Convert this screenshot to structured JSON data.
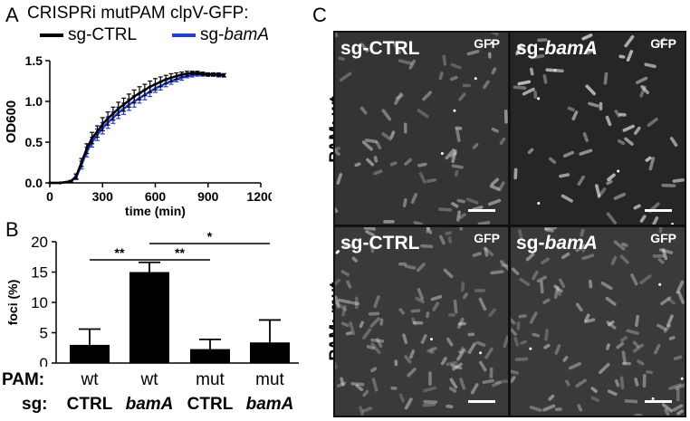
{
  "panels": {
    "a": "A",
    "b": "B",
    "c": "C"
  },
  "panel_a": {
    "title": "CRISPRi mutPAM clpV-GFP:",
    "legend": [
      {
        "label": "sg-CTRL",
        "color": "#000000"
      },
      {
        "label": "sg-",
        "label_italic": "bamA",
        "color": "#1f3fd8"
      }
    ]
  },
  "panel_b": {
    "significance": [
      "**",
      "**",
      "*"
    ],
    "conditions": {
      "pam_label": "PAM:",
      "sg_label": "sg:",
      "pam": [
        "wt",
        "wt",
        "mut",
        "mut"
      ],
      "sg": [
        "CTRL",
        "bamA",
        "CTRL",
        "bamA"
      ]
    }
  },
  "panel_c": {
    "row_labels": [
      "PAM: wt",
      "PAM: mut"
    ],
    "channel": "GFP",
    "tiles": [
      {
        "prefix": "sg-",
        "name": "CTRL"
      },
      {
        "prefix": "sg-",
        "name": "bamA"
      },
      {
        "prefix": "sg-",
        "name": "CTRL"
      },
      {
        "prefix": "sg-",
        "name": "bamA"
      }
    ]
  },
  "chart_data": [
    {
      "type": "line",
      "xlabel": "time (min)",
      "ylabel": "OD600",
      "xlim": [
        0,
        1200
      ],
      "ylim": [
        0,
        1.5
      ],
      "xticks": [
        0,
        300,
        600,
        900,
        1200
      ],
      "yticks": [
        0.0,
        0.5,
        1.0,
        1.5
      ],
      "ytick_labels": [
        "0.0",
        "0.5",
        "1.0",
        "1.5"
      ],
      "grid": false,
      "series": [
        {
          "name": "sg-CTRL",
          "color": "#000000",
          "x": [
            0,
            60,
            120,
            150,
            180,
            210,
            240,
            270,
            300,
            330,
            360,
            390,
            420,
            450,
            480,
            510,
            540,
            570,
            600,
            630,
            660,
            690,
            720,
            750,
            780,
            810,
            840,
            870,
            900,
            930,
            960,
            990
          ],
          "y": [
            0.0,
            0.0,
            0.02,
            0.08,
            0.25,
            0.42,
            0.55,
            0.63,
            0.72,
            0.79,
            0.85,
            0.91,
            0.96,
            1.01,
            1.06,
            1.1,
            1.14,
            1.18,
            1.21,
            1.24,
            1.27,
            1.29,
            1.31,
            1.33,
            1.34,
            1.35,
            1.35,
            1.34,
            1.33,
            1.33,
            1.33,
            1.32
          ],
          "err": [
            0.0,
            0.0,
            0.01,
            0.03,
            0.05,
            0.06,
            0.07,
            0.07,
            0.08,
            0.08,
            0.08,
            0.08,
            0.08,
            0.08,
            0.08,
            0.08,
            0.07,
            0.07,
            0.07,
            0.06,
            0.05,
            0.05,
            0.04,
            0.03,
            0.03,
            0.02,
            0.02,
            0.02,
            0.02,
            0.02,
            0.02,
            0.02
          ]
        },
        {
          "name": "sg-bamA",
          "color": "#1f3fd8",
          "x": [
            0,
            60,
            120,
            150,
            180,
            210,
            240,
            270,
            300,
            330,
            360,
            390,
            420,
            450,
            480,
            510,
            540,
            570,
            600,
            630,
            660,
            690,
            720,
            750,
            780,
            810,
            840,
            870,
            900,
            930,
            960,
            990
          ],
          "y": [
            0.0,
            0.0,
            0.02,
            0.07,
            0.22,
            0.38,
            0.5,
            0.59,
            0.67,
            0.74,
            0.8,
            0.86,
            0.91,
            0.96,
            1.0,
            1.04,
            1.08,
            1.12,
            1.16,
            1.19,
            1.22,
            1.25,
            1.27,
            1.29,
            1.31,
            1.32,
            1.33,
            1.33,
            1.33,
            1.33,
            1.32,
            1.32
          ],
          "err": [
            0.0,
            0.0,
            0.01,
            0.03,
            0.05,
            0.06,
            0.06,
            0.07,
            0.07,
            0.07,
            0.07,
            0.07,
            0.07,
            0.07,
            0.07,
            0.06,
            0.06,
            0.06,
            0.05,
            0.05,
            0.04,
            0.04,
            0.03,
            0.03,
            0.02,
            0.02,
            0.02,
            0.02,
            0.02,
            0.02,
            0.02,
            0.02
          ]
        }
      ]
    },
    {
      "type": "bar",
      "ylabel": "foci (%)",
      "ylim": [
        0,
        20
      ],
      "yticks": [
        0,
        5,
        10,
        15,
        20
      ],
      "categories": [
        "wt CTRL",
        "wt bamA",
        "mut CTRL",
        "mut bamA"
      ],
      "values": [
        3.0,
        15.0,
        2.3,
        3.4
      ],
      "err": [
        2.6,
        1.6,
        1.6,
        3.7
      ],
      "grid": false
    }
  ]
}
